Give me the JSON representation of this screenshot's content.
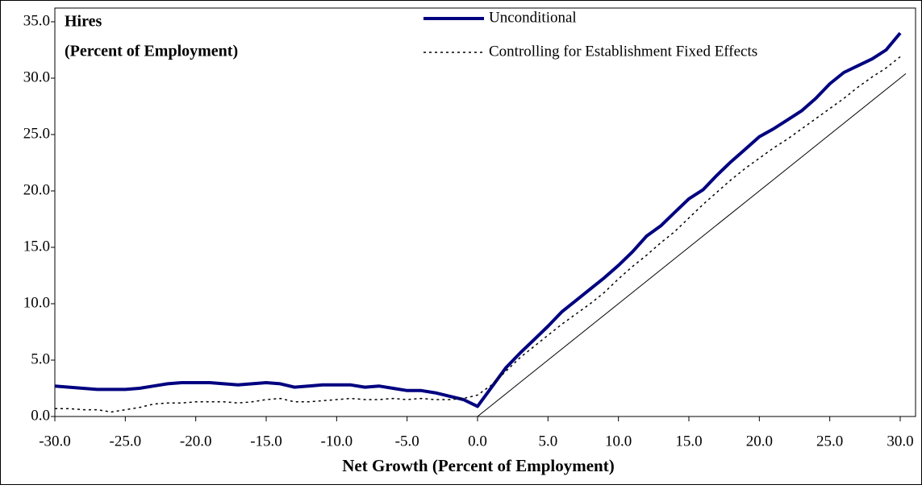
{
  "chart_data": {
    "type": "line",
    "title": [
      "Hires",
      "(Percent of Employment)"
    ],
    "x_label": "Net Growth (Percent of Employment)",
    "x": [
      -30,
      -29,
      -28,
      -27,
      -26,
      -25,
      -24,
      -23,
      -22,
      -21,
      -20,
      -19,
      -18,
      -17,
      -16,
      -15,
      -14,
      -13,
      -12,
      -11,
      -10,
      -9,
      -8,
      -7,
      -6,
      -5,
      -4,
      -3,
      -2,
      -1,
      0,
      1,
      2,
      3,
      4,
      5,
      6,
      7,
      8,
      9,
      10,
      11,
      12,
      13,
      14,
      15,
      16,
      17,
      18,
      19,
      20,
      21,
      22,
      23,
      24,
      25,
      26,
      27,
      28,
      29,
      30
    ],
    "series": [
      {
        "name": "Unconditional",
        "color": "#000080",
        "style": "solid",
        "width": 4,
        "values": [
          2.7,
          2.6,
          2.5,
          2.4,
          2.4,
          2.4,
          2.5,
          2.7,
          2.9,
          3.0,
          3.0,
          3.0,
          2.9,
          2.8,
          2.9,
          3.0,
          2.9,
          2.6,
          2.7,
          2.8,
          2.8,
          2.8,
          2.6,
          2.7,
          2.5,
          2.3,
          2.3,
          2.1,
          1.8,
          1.5,
          0.9,
          2.6,
          4.3,
          5.6,
          6.8,
          8.0,
          9.3,
          10.3,
          11.3,
          12.3,
          13.4,
          14.6,
          16.0,
          16.9,
          18.1,
          19.3,
          20.1,
          21.4,
          22.6,
          23.7,
          24.8,
          25.5,
          26.3,
          27.1,
          28.2,
          29.5,
          30.5,
          31.1,
          31.7,
          32.5,
          34.0
        ]
      },
      {
        "name": "Controlling for Establishment Fixed Effects",
        "color": "#000000",
        "style": "dotted",
        "width": 1.5,
        "values": [
          0.7,
          0.7,
          0.6,
          0.6,
          0.4,
          0.6,
          0.8,
          1.1,
          1.2,
          1.2,
          1.3,
          1.3,
          1.3,
          1.2,
          1.3,
          1.5,
          1.6,
          1.3,
          1.3,
          1.4,
          1.5,
          1.6,
          1.5,
          1.5,
          1.6,
          1.5,
          1.6,
          1.5,
          1.5,
          1.6,
          1.9,
          2.8,
          4.0,
          5.2,
          6.2,
          7.2,
          8.2,
          9.1,
          10.0,
          11.0,
          12.2,
          13.3,
          14.3,
          15.4,
          16.4,
          17.6,
          18.8,
          19.9,
          21.0,
          22.0,
          22.9,
          23.8,
          24.6,
          25.5,
          26.4,
          27.3,
          28.2,
          29.2,
          30.1,
          30.9,
          31.9
        ]
      },
      {
        "color": "#000000",
        "style": "solid",
        "width": 1,
        "x": [
          0,
          30.4
        ],
        "values": [
          0,
          30.4
        ]
      }
    ],
    "xlim": [
      -30,
      30
    ],
    "ylim": [
      0,
      35
    ],
    "xticks": [
      {
        "value": -30,
        "label": "-30.0"
      },
      {
        "value": -25,
        "label": "-25.0"
      },
      {
        "value": -20,
        "label": "-20.0"
      },
      {
        "value": -15,
        "label": "-15.0"
      },
      {
        "value": -10,
        "label": "-10.0"
      },
      {
        "value": -5,
        "label": "-5.0"
      },
      {
        "value": 0,
        "label": "0.0"
      },
      {
        "value": 5,
        "label": "5.0"
      },
      {
        "value": 10,
        "label": "10.0"
      },
      {
        "value": 15,
        "label": "15.0"
      },
      {
        "value": 20,
        "label": "20.0"
      },
      {
        "value": 25,
        "label": "25.0"
      },
      {
        "value": 30,
        "label": "30.0"
      }
    ],
    "yticks": [
      {
        "value": 0,
        "label": "0.0"
      },
      {
        "value": 5,
        "label": "5.0"
      },
      {
        "value": 10,
        "label": "10.0"
      },
      {
        "value": 15,
        "label": "15.0"
      },
      {
        "value": 20,
        "label": "20.0"
      },
      {
        "value": 25,
        "label": "25.0"
      },
      {
        "value": 30,
        "label": "30.0"
      },
      {
        "value": 35,
        "label": "35.0"
      }
    ],
    "grid": false
  }
}
